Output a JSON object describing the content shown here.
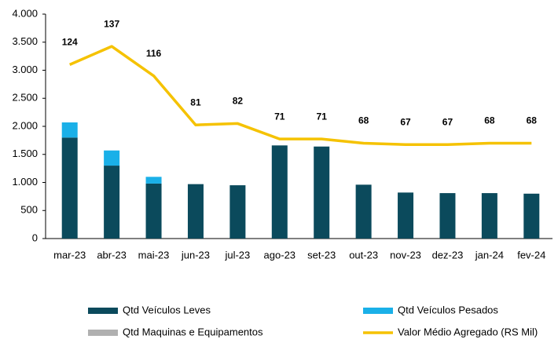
{
  "chart_data": {
    "type": "bar",
    "categories": [
      "mar-23",
      "abr-23",
      "mai-23",
      "jun-23",
      "jul-23",
      "ago-23",
      "set-23",
      "out-23",
      "nov-23",
      "dez-23",
      "jan-24",
      "fev-24"
    ],
    "stacked": true,
    "series": [
      {
        "name": "Qtd Veículos Leves",
        "color": "#0b4a5c",
        "values": [
          1800,
          1300,
          980,
          970,
          950,
          1660,
          1640,
          960,
          820,
          810,
          810,
          800
        ]
      },
      {
        "name": "Qtd Veículos Pesados",
        "color": "#1ab0e8",
        "values": [
          270,
          270,
          120,
          0,
          0,
          0,
          0,
          0,
          0,
          0,
          0,
          0
        ]
      },
      {
        "name": "Qtd Maquinas e Equipamentos",
        "color": "#b0b0b0",
        "values": [
          0,
          0,
          0,
          0,
          0,
          0,
          0,
          0,
          0,
          0,
          0,
          0
        ]
      },
      {
        "name": "Valor Médio Agregado (RS Mil)",
        "color": "#f5c200",
        "type": "line",
        "axis": "y2",
        "values": [
          124,
          137,
          116,
          81,
          82,
          71,
          71,
          68,
          67,
          67,
          68,
          68
        ]
      }
    ],
    "ylim": [
      0,
      4000
    ],
    "yticks": [
      0,
      500,
      {
        "value": 1000,
        "label": "1.000"
      },
      {
        "value": 1500,
        "label": "1.500"
      },
      {
        "value": 2000,
        "label": "2.000"
      },
      {
        "value": 2500,
        "label": "2.500"
      },
      {
        "value": 3000,
        "label": "3.000"
      },
      {
        "value": 3500,
        "label": "3.500"
      },
      {
        "value": 4000,
        "label": "4.000"
      }
    ],
    "y2lim": [
      0,
      160
    ],
    "grid": false
  }
}
